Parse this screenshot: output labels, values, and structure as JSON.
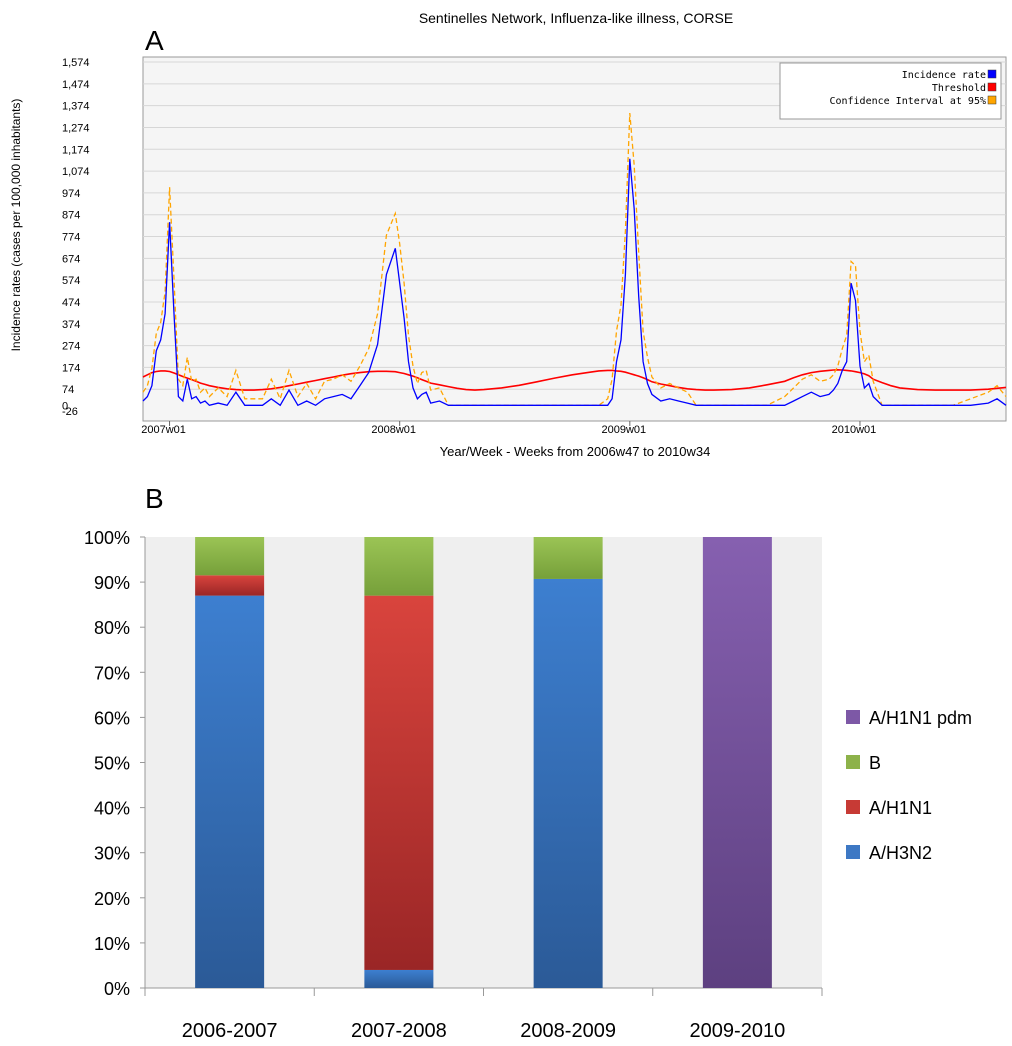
{
  "chart_data": [
    {
      "type": "line",
      "panel_label": "A",
      "title": "Sentinelles Network, Influenza-like illness, CORSE",
      "xlabel": "Year/Week - Weeks from 2006w47 to 2010w34",
      "ylabel": "Incidence rates (cases per 100,000 inhabitants)",
      "ylim": [
        -26,
        1574
      ],
      "yticks": [
        "1,574",
        "1,474",
        "1,374",
        "1,274",
        "1,174",
        "1,074",
        "974",
        "874",
        "774",
        "674",
        "574",
        "474",
        "374",
        "274",
        "174",
        "74",
        "0",
        "-26"
      ],
      "xticks": [
        "2007w01",
        "2008w01",
        "2009w01",
        "2010w01"
      ],
      "grid": true,
      "legend_position": "top-right",
      "legend": [
        {
          "name": "Incidence rate",
          "color": "#0000ff"
        },
        {
          "name": "Threshold",
          "color": "#ff0000"
        },
        {
          "name": "Confidence Interval at 95%",
          "color": "#ffa500"
        }
      ],
      "x": [
        "2006w47",
        "2006w48",
        "2006w49",
        "2006w50",
        "2006w51",
        "2006w52",
        "2007w01",
        "2007w02",
        "2007w03",
        "2007w04",
        "2007w05",
        "2007w06",
        "2007w07",
        "2007w08",
        "2007w09",
        "2007w10",
        "2007w12",
        "2007w14",
        "2007w16",
        "2007w18",
        "2007w20",
        "2007w22",
        "2007w24",
        "2007w26",
        "2007w28",
        "2007w30",
        "2007w32",
        "2007w34",
        "2007w36",
        "2007w38",
        "2007w40",
        "2007w42",
        "2007w44",
        "2007w46",
        "2007w48",
        "2007w50",
        "2007w52",
        "2008w01",
        "2008w02",
        "2008w03",
        "2008w04",
        "2008w05",
        "2008w06",
        "2008w07",
        "2008w08",
        "2008w10",
        "2008w12",
        "2008w14",
        "2008w16",
        "2008w18",
        "2008w20",
        "2008w24",
        "2008w28",
        "2008w32",
        "2008w36",
        "2008w40",
        "2008w44",
        "2008w46",
        "2008w48",
        "2008w49",
        "2008w50",
        "2008w51",
        "2008w52",
        "2009w01",
        "2009w02",
        "2009w03",
        "2009w04",
        "2009w05",
        "2009w06",
        "2009w08",
        "2009w10",
        "2009w12",
        "2009w14",
        "2009w16",
        "2009w18",
        "2009w20",
        "2009w24",
        "2009w28",
        "2009w32",
        "2009w36",
        "2009w38",
        "2009w40",
        "2009w42",
        "2009w44",
        "2009w46",
        "2009w47",
        "2009w48",
        "2009w49",
        "2009w50",
        "2009w51",
        "2009w52",
        "2010w01",
        "2010w02",
        "2010w03",
        "2010w04",
        "2010w06",
        "2010w08",
        "2010w10",
        "2010w14",
        "2010w18",
        "2010w22",
        "2010w26",
        "2010w30",
        "2010w32",
        "2010w34"
      ],
      "series": [
        {
          "name": "Incidence rate",
          "color": "#0000ff",
          "values": [
            20,
            40,
            90,
            250,
            300,
            420,
            840,
            420,
            40,
            20,
            120,
            30,
            40,
            10,
            20,
            0,
            10,
            0,
            60,
            0,
            0,
            0,
            30,
            0,
            70,
            0,
            20,
            0,
            30,
            40,
            50,
            30,
            90,
            150,
            280,
            600,
            720,
            560,
            400,
            200,
            80,
            30,
            50,
            60,
            10,
            20,
            0,
            0,
            0,
            0,
            0,
            0,
            0,
            0,
            0,
            0,
            0,
            0,
            0,
            30,
            200,
            300,
            600,
            1130,
            900,
            500,
            200,
            100,
            50,
            20,
            30,
            20,
            10,
            0,
            0,
            0,
            0,
            0,
            0,
            0,
            20,
            40,
            60,
            40,
            50,
            70,
            100,
            160,
            200,
            560,
            480,
            180,
            80,
            100,
            40,
            0,
            0,
            0,
            0,
            0,
            0,
            0,
            10,
            30,
            0
          ]
        },
        {
          "name": "Threshold",
          "color": "#ff0000",
          "values": [
            130,
            140,
            150,
            155,
            158,
            158,
            155,
            148,
            140,
            132,
            125,
            118,
            110,
            102,
            96,
            90,
            82,
            76,
            72,
            70,
            70,
            72,
            76,
            82,
            90,
            98,
            106,
            114,
            122,
            130,
            138,
            145,
            150,
            154,
            156,
            156,
            154,
            150,
            146,
            140,
            134,
            126,
            118,
            110,
            102,
            94,
            86,
            78,
            72,
            70,
            72,
            80,
            92,
            108,
            125,
            140,
            152,
            158,
            160,
            160,
            158,
            156,
            152,
            146,
            140,
            134,
            126,
            118,
            108,
            98,
            90,
            82,
            76,
            72,
            70,
            70,
            72,
            80,
            94,
            110,
            126,
            140,
            150,
            156,
            160,
            162,
            163,
            162,
            160,
            158,
            154,
            150,
            144,
            136,
            120,
            104,
            90,
            80,
            72,
            70,
            70,
            70,
            74,
            78,
            82
          ]
        },
        {
          "name": "Confidence Interval at 95%",
          "color": "#ffa500",
          "values": [
            60,
            90,
            170,
            330,
            380,
            520,
            1000,
            580,
            120,
            90,
            220,
            110,
            120,
            60,
            80,
            40,
            80,
            40,
            160,
            30,
            30,
            30,
            120,
            30,
            160,
            40,
            100,
            30,
            110,
            120,
            140,
            110,
            180,
            260,
            420,
            780,
            880,
            740,
            560,
            320,
            180,
            100,
            150,
            160,
            70,
            80,
            0,
            0,
            0,
            0,
            0,
            0,
            0,
            0,
            0,
            0,
            0,
            0,
            30,
            120,
            340,
            460,
            800,
            1340,
            1100,
            700,
            340,
            220,
            130,
            80,
            100,
            80,
            60,
            0,
            0,
            0,
            0,
            0,
            0,
            40,
            80,
            120,
            140,
            110,
            120,
            140,
            180,
            260,
            320,
            660,
            640,
            340,
            200,
            230,
            110,
            0,
            0,
            0,
            0,
            0,
            0,
            30,
            60,
            90,
            40
          ]
        }
      ]
    },
    {
      "type": "bar",
      "stacked": true,
      "panel_label": "B",
      "categories": [
        "2006-2007",
        "2007-2008",
        "2008-2009",
        "2009-2010"
      ],
      "ylim": [
        0,
        100
      ],
      "yticks": [
        "100%",
        "90%",
        "80%",
        "70%",
        "60%",
        "50%",
        "40%",
        "30%",
        "20%",
        "10%",
        "0%"
      ],
      "legend_position": "right",
      "series": [
        {
          "name": "A/H3N2",
          "color": "#3d78c4",
          "values": [
            87,
            4,
            90.7,
            0
          ]
        },
        {
          "name": "A/H1N1",
          "color": "#c73a35",
          "values": [
            4.5,
            83,
            0,
            0
          ]
        },
        {
          "name": "B",
          "color": "#8db24a",
          "values": [
            8.5,
            13,
            9.3,
            0
          ]
        },
        {
          "name": "A/H1N1 pdm",
          "color": "#7d58a6",
          "values": [
            0,
            0,
            0,
            100
          ]
        }
      ],
      "legend_order": [
        "A/H1N1 pdm",
        "B",
        "A/H1N1",
        "A/H3N2"
      ]
    }
  ]
}
